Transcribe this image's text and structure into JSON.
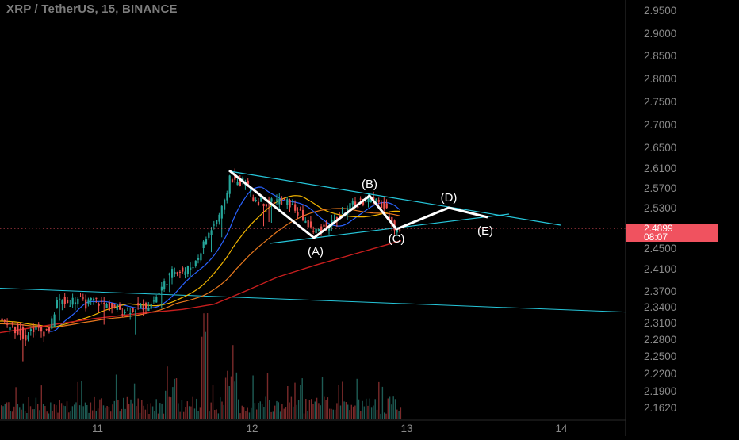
{
  "header": {
    "title": "XRP / TetherUS, 15, BINANCE"
  },
  "price_axis": {
    "ticks": [
      "2.9500",
      "2.9000",
      "2.8500",
      "2.8000",
      "2.7500",
      "2.7000",
      "2.6500",
      "2.6100",
      "2.5700",
      "2.5300",
      "2.4899",
      "2.4500",
      "2.4100",
      "2.3700",
      "2.3400",
      "2.3100",
      "2.2800",
      "2.2500",
      "2.2200",
      "2.1900",
      "2.1620"
    ],
    "current_price": "2.4899",
    "countdown": "08:07",
    "current_price_color": "#f0525f"
  },
  "time_axis": {
    "ticks": [
      "11",
      "12",
      "13",
      "14"
    ]
  },
  "wave_labels": [
    "(A)",
    "(B)",
    "(C)",
    "(D)",
    "(E)"
  ],
  "colors": {
    "background": "#000000",
    "candle_up": "#26a69a",
    "candle_down": "#ef5350",
    "trendline": "#26c6da",
    "pattern": "#ffffff",
    "ma_fast": "#2962ff",
    "ma_mid": "#f0b400",
    "ma_slow": "#e6781e",
    "ma_long": "#c81e1e"
  },
  "chart_data": {
    "type": "candlestick",
    "title": "XRP / TetherUS, 15, BINANCE",
    "x_ticks": [
      "11",
      "12",
      "13",
      "14"
    ],
    "y_ticks": [
      2.95,
      2.9,
      2.85,
      2.8,
      2.75,
      2.7,
      2.65,
      2.61,
      2.57,
      2.53,
      2.45,
      2.41,
      2.37,
      2.34,
      2.31,
      2.28,
      2.25,
      2.22,
      2.19,
      2.162
    ],
    "ylim": [
      2.15,
      2.97
    ],
    "last_price": 2.4899,
    "annotations": [
      {
        "label": "(A)",
        "price": 2.48
      },
      {
        "label": "(B)",
        "price": 2.565
      },
      {
        "label": "(C)",
        "price": 2.495
      },
      {
        "label": "(D)",
        "price": 2.53
      },
      {
        "label": "(E)",
        "price": 2.513
      }
    ]
  }
}
